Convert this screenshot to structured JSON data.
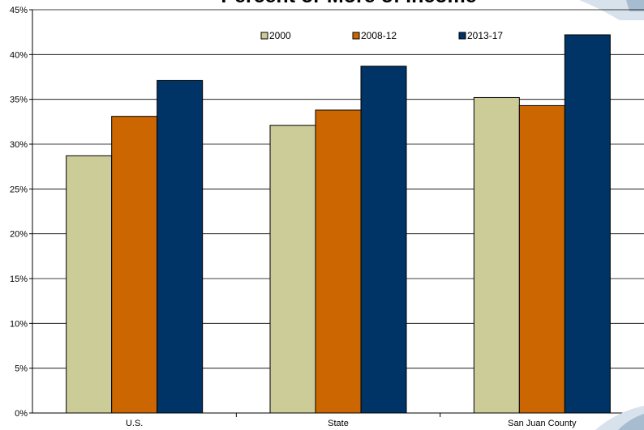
{
  "colors": {
    "accent": "#a7bccf",
    "accent_light": "#d8e2ec"
  },
  "chart_data": {
    "type": "bar",
    "title": "Percent or More of Income",
    "categories": [
      "U.S.",
      "State",
      "San Juan County"
    ],
    "series": [
      {
        "name": "2000",
        "color": "#cccc99",
        "values": [
          28.7,
          32.1,
          35.2
        ]
      },
      {
        "name": "2008-12",
        "color": "#cc6600",
        "values": [
          33.1,
          33.8,
          34.3
        ]
      },
      {
        "name": "2013-17",
        "color": "#003366",
        "values": [
          37.1,
          38.7,
          42.2
        ]
      }
    ],
    "yticks": [
      "0%",
      "5%",
      "10%",
      "15%",
      "20%",
      "25%",
      "30%",
      "35%",
      "40%",
      "45%"
    ],
    "ylim": [
      0,
      45
    ],
    "xlabel": "",
    "ylabel": "",
    "legend_position": "top"
  }
}
